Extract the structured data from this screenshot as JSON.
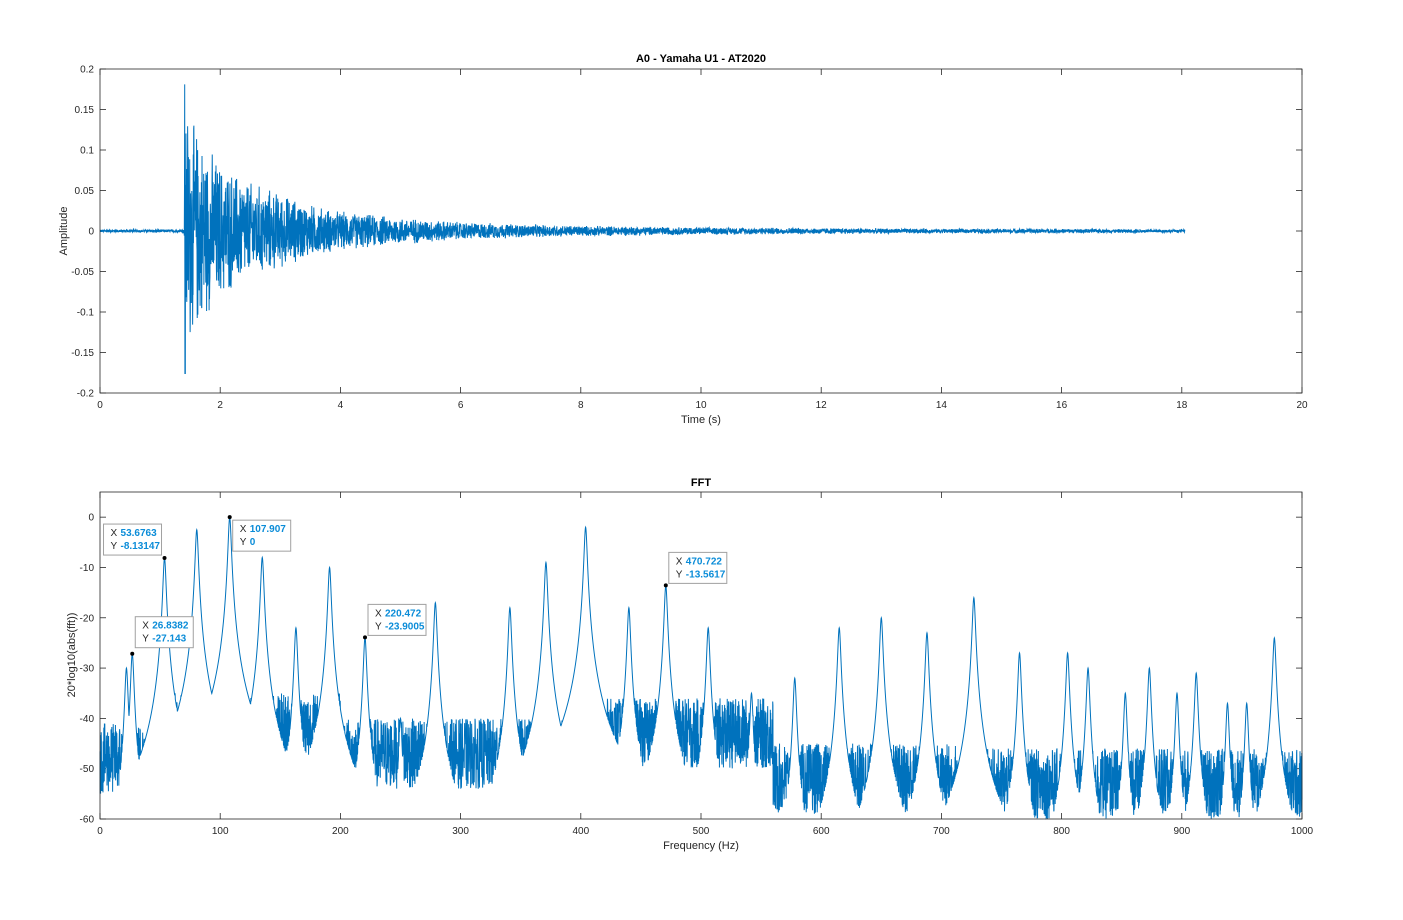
{
  "colors": {
    "series": "#0072bd",
    "axis": "#262626",
    "datatip_value": "#0a8cd8"
  },
  "chart_data": [
    {
      "type": "line",
      "title": "A0 - Yamaha U1 - AT2020",
      "xlabel": "Time (s)",
      "ylabel": "Amplitude",
      "xlim": [
        0,
        20
      ],
      "ylim": [
        -0.2,
        0.2
      ],
      "xticks": [
        "0",
        "2",
        "4",
        "6",
        "8",
        "10",
        "12",
        "14",
        "16",
        "18",
        "20"
      ],
      "yticks": [
        "-0.2",
        "-0.15",
        "-0.1",
        "-0.05",
        "0",
        "0.05",
        "0.1",
        "0.15",
        "0.2"
      ],
      "series": [
        {
          "signal_start": 0,
          "signal_end": 18.05,
          "onset": 1.41,
          "envelope_peak": 0.181,
          "envelope_min": -0.176,
          "envelope": [
            [
              0,
              0.002
            ],
            [
              1.4,
              0.002
            ],
            [
              1.41,
              0.18
            ],
            [
              1.5,
              0.15
            ],
            [
              1.7,
              0.12
            ],
            [
              2.0,
              0.09
            ],
            [
              2.5,
              0.065
            ],
            [
              3.0,
              0.05
            ],
            [
              3.5,
              0.035
            ],
            [
              4.0,
              0.026
            ],
            [
              5.0,
              0.018
            ],
            [
              6.0,
              0.012
            ],
            [
              7.0,
              0.009
            ],
            [
              8.0,
              0.007
            ],
            [
              10.0,
              0.005
            ],
            [
              12.0,
              0.004
            ],
            [
              14.0,
              0.003
            ],
            [
              16.0,
              0.003
            ],
            [
              18.05,
              0.002
            ]
          ]
        }
      ]
    },
    {
      "type": "line",
      "title": "FFT",
      "xlabel": "Frequency (Hz)",
      "ylabel": "20*log10(abs(fft))",
      "xlim": [
        0,
        1000
      ],
      "ylim": [
        -60,
        5
      ],
      "xticks": [
        "0",
        "100",
        "200",
        "300",
        "400",
        "500",
        "600",
        "700",
        "800",
        "900",
        "1000"
      ],
      "yticks": [
        "-60",
        "-50",
        "-40",
        "-30",
        "-20",
        "-10",
        "0"
      ],
      "series": [
        {
          "peaks": [
            [
              22,
              -30
            ],
            [
              26.84,
              -27.1
            ],
            [
              53.68,
              -8.1
            ],
            [
              80.5,
              -2.5
            ],
            [
              107.9,
              0
            ],
            [
              135,
              -8
            ],
            [
              163,
              -22
            ],
            [
              191,
              -10
            ],
            [
              220.47,
              -23.9
            ],
            [
              250,
              -40
            ],
            [
              279,
              -17
            ],
            [
              341,
              -18
            ],
            [
              371,
              -9
            ],
            [
              404,
              -2
            ],
            [
              440,
              -18
            ],
            [
              470.72,
              -13.6
            ],
            [
              506,
              -22
            ],
            [
              542,
              -35
            ],
            [
              578,
              -32
            ],
            [
              615,
              -22
            ],
            [
              650,
              -20
            ],
            [
              688,
              -23
            ],
            [
              727,
              -16
            ],
            [
              765,
              -27
            ],
            [
              805,
              -27
            ],
            [
              822,
              -30
            ],
            [
              853,
              -35
            ],
            [
              873,
              -30
            ],
            [
              896,
              -35
            ],
            [
              912,
              -31
            ],
            [
              938,
              -37
            ],
            [
              954,
              -37
            ],
            [
              977,
              -24
            ]
          ]
        }
      ],
      "datatips": [
        {
          "x": 53.6763,
          "y": -8.13147,
          "x_text": "53.6763",
          "y_text": "-8.13147"
        },
        {
          "x": 26.8382,
          "y": -27.143,
          "x_text": "26.8382",
          "y_text": "-27.143"
        },
        {
          "x": 107.907,
          "y": 0,
          "x_text": "107.907",
          "y_text": "0"
        },
        {
          "x": 220.472,
          "y": -23.9005,
          "x_text": "220.472",
          "y_text": "-23.9005"
        },
        {
          "x": 470.722,
          "y": -13.5617,
          "x_text": "470.722",
          "y_text": "-13.5617"
        }
      ],
      "datatip_labels": {
        "x": "X",
        "y": "Y"
      }
    }
  ]
}
